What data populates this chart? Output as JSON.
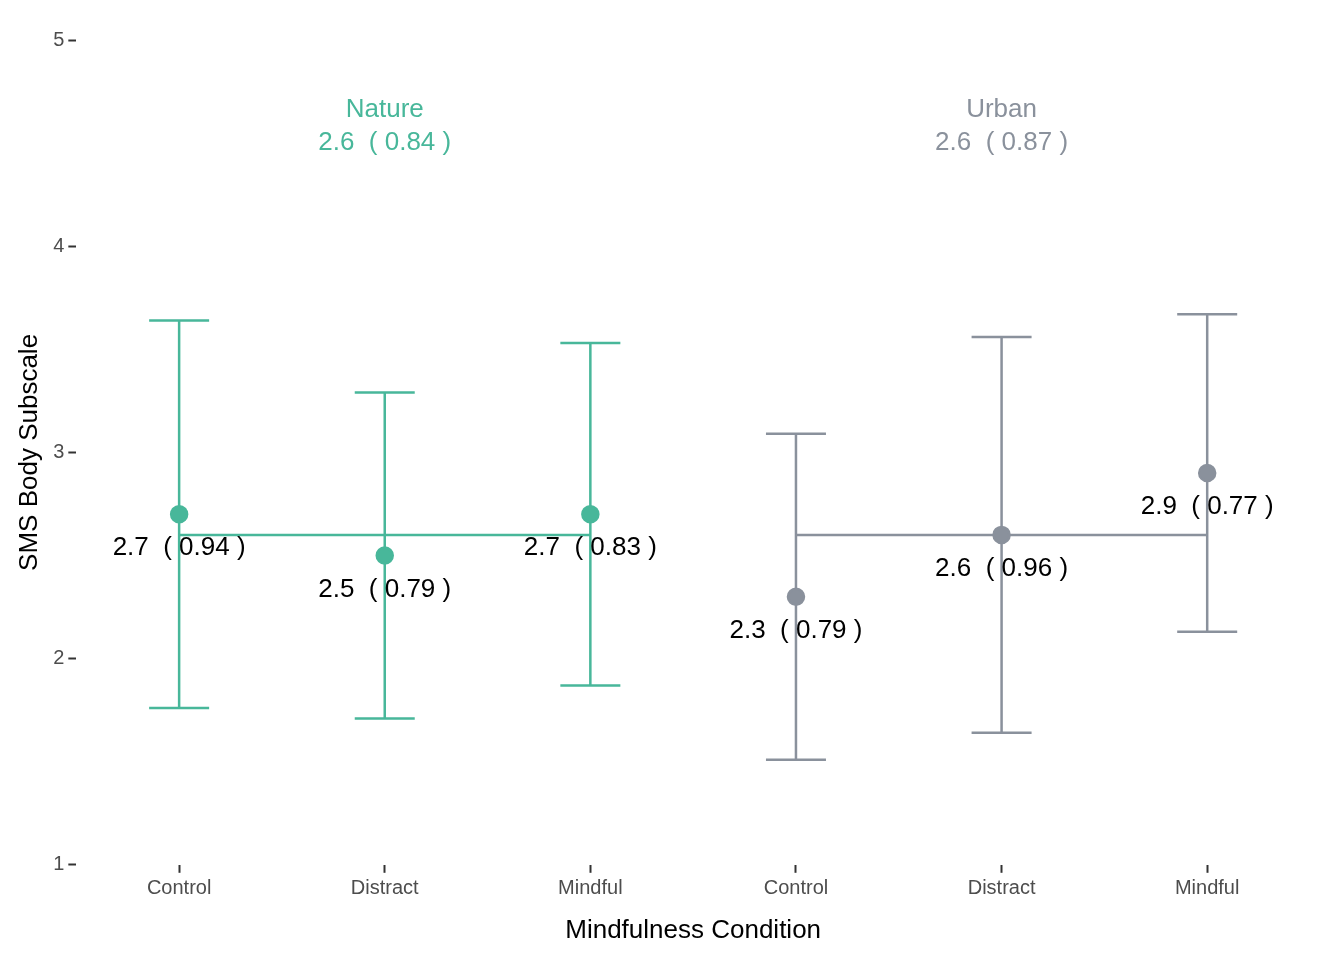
{
  "chart_data": {
    "type": "scatter",
    "xlabel": "Mindfulness Condition",
    "ylabel": "SMS Body Subscale",
    "categories": [
      "Control",
      "Distract",
      "Mindful",
      "Control",
      "Distract",
      "Mindful"
    ],
    "ylim": [
      1,
      5
    ],
    "yticks": [
      1,
      2,
      3,
      4,
      5
    ],
    "grid": false,
    "legend": false,
    "marker": "circle",
    "series": [
      {
        "name": "Nature",
        "color": "#48b79a",
        "values": [
          2.7,
          2.5,
          2.7,
          null,
          null,
          null
        ],
        "errors": [
          0.94,
          0.79,
          0.83,
          null,
          null,
          null
        ],
        "value_labels": [
          "2.7  ( 0.94 )",
          "2.5  ( 0.79 )",
          "2.7  ( 0.83 )",
          null,
          null,
          null
        ]
      },
      {
        "name": "Urban",
        "color": "#8a919c",
        "values": [
          null,
          null,
          null,
          2.3,
          2.6,
          2.9
        ],
        "errors": [
          null,
          null,
          null,
          0.79,
          0.96,
          0.77
        ],
        "value_labels": [
          null,
          null,
          null,
          "2.3  ( 0.79 )",
          "2.6  ( 0.96 )",
          "2.9  ( 0.77 )"
        ]
      },
      {
        "type": "line",
        "color": "#48b79a",
        "marker": "none",
        "values": [
          2.6,
          2.6,
          2.6,
          null,
          null,
          null
        ]
      },
      {
        "type": "line",
        "color": "#8a919c",
        "marker": "none",
        "values": [
          null,
          null,
          null,
          2.6,
          2.6,
          2.6
        ]
      }
    ],
    "annotations": [
      "2.6  ( 0.84 )",
      "2.6  ( 0.87 )"
    ]
  }
}
